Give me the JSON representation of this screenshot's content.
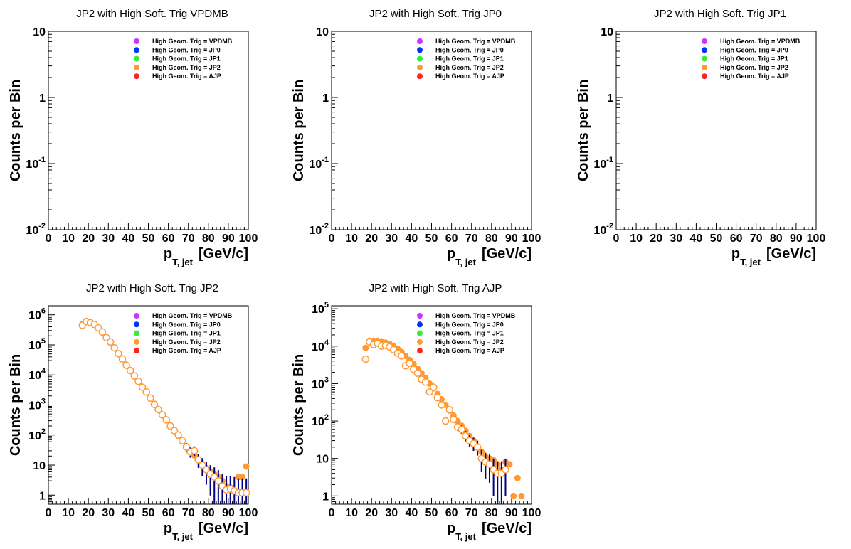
{
  "common": {
    "xlabel_main": "p",
    "xlabel_sub": "T, jet",
    "xlabel_unit": "[GeV/c]",
    "ylabel": "Counts per Bin",
    "x_ticks": [
      "0",
      "10",
      "20",
      "30",
      "40",
      "50",
      "60",
      "70",
      "80",
      "90",
      "100"
    ],
    "legend": [
      {
        "label": "High Geom. Trig = VPDMB",
        "color": "#cc33ff"
      },
      {
        "label": "High Geom. Trig = JP0",
        "color": "#0033ff"
      },
      {
        "label": "High Geom. Trig = JP1",
        "color": "#33ee33"
      },
      {
        "label": "High Geom. Trig = JP2",
        "color": "#ff9933"
      },
      {
        "label": "High Geom. Trig = AJP",
        "color": "#ff2222"
      }
    ],
    "colors": {
      "marker": "#ff9933",
      "errorbar": "#000080"
    }
  },
  "chart_data": [
    {
      "type": "scatter",
      "title": "JP2 with High Soft. Trig VPDMB",
      "xlim": [
        0,
        100
      ],
      "ylim": [
        0.01,
        10
      ],
      "yscale": "log",
      "y_ticks": [
        {
          "v": 10,
          "b": "10"
        },
        {
          "v": 1,
          "b": "1"
        },
        {
          "v": 0.1,
          "b": "10",
          "e": "-1"
        },
        {
          "v": 0.01,
          "b": "10",
          "e": "-2"
        }
      ],
      "series": []
    },
    {
      "type": "scatter",
      "title": "JP2 with High Soft. Trig JP0",
      "xlim": [
        0,
        100
      ],
      "ylim": [
        0.01,
        10
      ],
      "yscale": "log",
      "y_ticks": [
        {
          "v": 10,
          "b": "10"
        },
        {
          "v": 1,
          "b": "1"
        },
        {
          "v": 0.1,
          "b": "10",
          "e": "-1"
        },
        {
          "v": 0.01,
          "b": "10",
          "e": "-2"
        }
      ],
      "series": []
    },
    {
      "type": "scatter",
      "title": "JP2 with High Soft. Trig JP1",
      "xlim": [
        0,
        100
      ],
      "ylim": [
        0.01,
        10
      ],
      "yscale": "log",
      "y_ticks": [
        {
          "v": 10,
          "b": "10"
        },
        {
          "v": 1,
          "b": "1"
        },
        {
          "v": 0.1,
          "b": "10",
          "e": "-1"
        },
        {
          "v": 0.01,
          "b": "10",
          "e": "-2"
        }
      ],
      "series": []
    },
    {
      "type": "scatter",
      "title": "JP2 with High Soft. Trig JP2",
      "xlim": [
        0,
        100
      ],
      "ylim": [
        0.5,
        2000000
      ],
      "yscale": "log",
      "y_ticks": [
        {
          "v": 1000000,
          "b": "10",
          "e": "6"
        },
        {
          "v": 100000,
          "b": "10",
          "e": "5"
        },
        {
          "v": 10000,
          "b": "10",
          "e": "4"
        },
        {
          "v": 1000,
          "b": "10",
          "e": "3"
        },
        {
          "v": 100,
          "b": "10",
          "e": "2"
        },
        {
          "v": 10,
          "b": "10"
        },
        {
          "v": 1,
          "b": "1"
        }
      ],
      "series": [
        {
          "style": "filled",
          "x": [
            17,
            19,
            21,
            23,
            25,
            27,
            29,
            31,
            33,
            35,
            37,
            39,
            41,
            43,
            45,
            47,
            49,
            51,
            53,
            55,
            57,
            59,
            61,
            63,
            65,
            67,
            69,
            71,
            73,
            75,
            77,
            79,
            81,
            83,
            85,
            87,
            89,
            91,
            93,
            95,
            97,
            99
          ],
          "y": [
            500000,
            620000,
            560000,
            470000,
            360000,
            260000,
            180000,
            120000,
            78000,
            52000,
            34000,
            22000,
            14500,
            9500,
            6200,
            4000,
            2600,
            1700,
            1100,
            720,
            480,
            320,
            210,
            140,
            95,
            64,
            43,
            30,
            21,
            15,
            11,
            8,
            6,
            5,
            4,
            3,
            2,
            1.8,
            1.4,
            4,
            4,
            9
          ]
        },
        {
          "style": "open",
          "x": [
            17,
            19,
            21,
            23,
            25,
            27,
            29,
            31,
            33,
            35,
            37,
            39,
            41,
            43,
            45,
            47,
            49,
            51,
            53,
            55,
            57,
            59,
            61,
            63,
            65,
            67,
            69,
            71,
            73,
            75,
            77,
            79,
            81,
            83,
            85,
            87,
            89,
            91,
            93,
            95,
            97,
            99
          ],
          "y": [
            450000,
            600000,
            550000,
            480000,
            370000,
            270000,
            175000,
            125000,
            80000,
            51000,
            34000,
            21000,
            14000,
            9300,
            6100,
            3900,
            2700,
            1700,
            1050,
            700,
            470,
            320,
            200,
            140,
            100,
            65,
            40,
            27,
            30,
            15,
            10,
            7,
            5,
            4,
            3,
            2,
            1.5,
            1.6,
            1.4,
            1.2,
            1.2,
            1.2
          ]
        }
      ]
    },
    {
      "type": "scatter",
      "title": "JP2 with High Soft. Trig AJP",
      "xlim": [
        0,
        100
      ],
      "ylim": [
        0.6,
        120000
      ],
      "yscale": "log",
      "y_ticks": [
        {
          "v": 100000,
          "b": "10",
          "e": "5"
        },
        {
          "v": 10000,
          "b": "10",
          "e": "4"
        },
        {
          "v": 1000,
          "b": "10",
          "e": "3"
        },
        {
          "v": 100,
          "b": "10",
          "e": "2"
        },
        {
          "v": 10,
          "b": "10"
        },
        {
          "v": 1,
          "b": "1"
        }
      ],
      "series": [
        {
          "style": "filled",
          "x": [
            17,
            19,
            21,
            23,
            25,
            27,
            29,
            31,
            33,
            35,
            37,
            39,
            41,
            43,
            45,
            47,
            49,
            51,
            53,
            55,
            57,
            59,
            61,
            63,
            65,
            67,
            69,
            71,
            73,
            75,
            77,
            79,
            81,
            83,
            85,
            87,
            89,
            91,
            93,
            95
          ],
          "y": [
            9000,
            14000,
            14000,
            14000,
            13500,
            12500,
            11500,
            10000,
            8500,
            7000,
            5500,
            4300,
            3300,
            2500,
            1900,
            1400,
            1000,
            750,
            530,
            380,
            270,
            190,
            140,
            100,
            75,
            55,
            40,
            30,
            20,
            15,
            11,
            10,
            9,
            7,
            5,
            8,
            7,
            1,
            3,
            1
          ]
        },
        {
          "style": "open",
          "x": [
            17,
            19,
            21,
            23,
            25,
            27,
            29,
            31,
            33,
            35,
            37,
            39,
            41,
            43,
            45,
            47,
            49,
            51,
            53,
            55,
            57,
            59,
            61,
            63,
            65,
            67,
            69,
            71,
            73,
            75,
            77,
            79,
            81,
            83,
            85,
            87
          ],
          "y": [
            4500,
            13000,
            11000,
            12000,
            10000,
            10500,
            9500,
            8000,
            6500,
            5500,
            3000,
            3500,
            2400,
            1900,
            1300,
            1100,
            600,
            800,
            420,
            270,
            100,
            200,
            110,
            70,
            60,
            40,
            30,
            25,
            20,
            10,
            8,
            7,
            5,
            4,
            4,
            5
          ]
        }
      ]
    }
  ]
}
